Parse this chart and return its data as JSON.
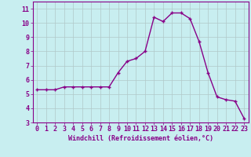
{
  "x": [
    0,
    1,
    2,
    3,
    4,
    5,
    6,
    7,
    8,
    9,
    10,
    11,
    12,
    13,
    14,
    15,
    16,
    17,
    18,
    19,
    20,
    21,
    22,
    23
  ],
  "y": [
    5.3,
    5.3,
    5.3,
    5.5,
    5.5,
    5.5,
    5.5,
    5.5,
    5.5,
    6.5,
    7.3,
    7.5,
    8.0,
    10.4,
    10.1,
    10.7,
    10.7,
    10.3,
    8.7,
    6.5,
    4.8,
    4.6,
    4.5,
    3.3
  ],
  "line_color": "#880088",
  "marker": "+",
  "marker_size": 3.0,
  "line_width": 1.0,
  "background_color": "#c8eef0",
  "grid_color": "#b0c8c8",
  "xlabel": "Windchill (Refroidissement éolien,°C)",
  "xlabel_fontsize": 6.0,
  "tick_color": "#880088",
  "tick_fontsize": 6.0,
  "ylim": [
    3,
    11.5
  ],
  "xlim": [
    -0.5,
    23.5
  ],
  "yticks": [
    3,
    4,
    5,
    6,
    7,
    8,
    9,
    10,
    11
  ],
  "xticks": [
    0,
    1,
    2,
    3,
    4,
    5,
    6,
    7,
    8,
    9,
    10,
    11,
    12,
    13,
    14,
    15,
    16,
    17,
    18,
    19,
    20,
    21,
    22,
    23
  ]
}
